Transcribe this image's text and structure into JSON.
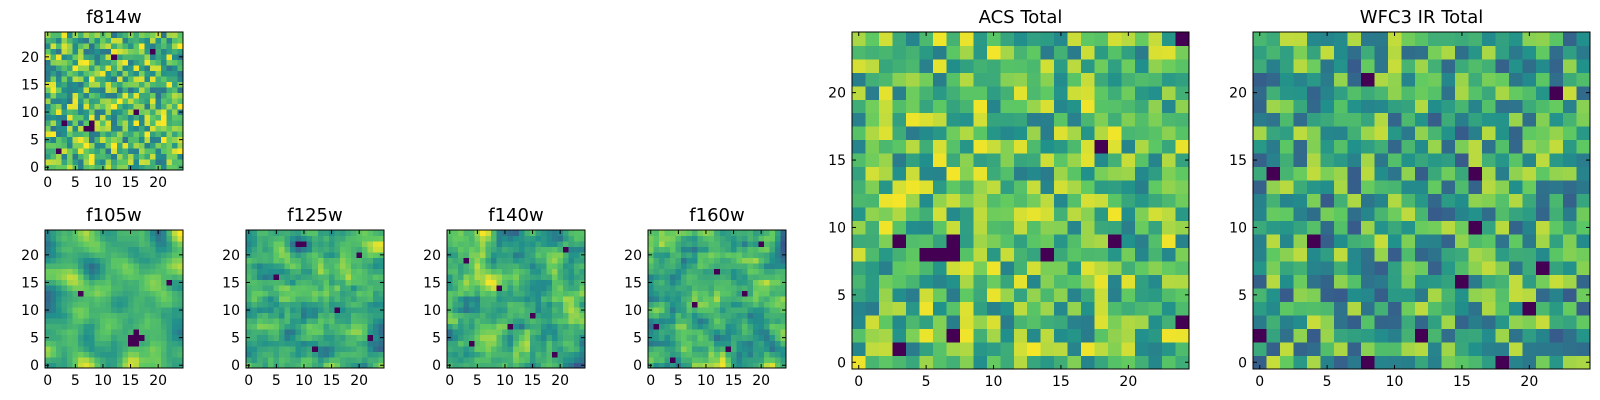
{
  "colormap": {
    "name": "viridis",
    "stops": [
      "#440154",
      "#3b528b",
      "#21918c",
      "#5ec962",
      "#fde725"
    ]
  },
  "chart_data": [
    {
      "id": "f814w",
      "type": "heatmap",
      "title": "f814w",
      "grid": 25,
      "xlim": [
        -0.5,
        24.5
      ],
      "ylim": [
        -0.5,
        24.5
      ],
      "xticks": [
        0,
        5,
        10,
        15,
        20
      ],
      "yticks": [
        0,
        5,
        10,
        15,
        20
      ],
      "value_range": [
        0,
        1
      ],
      "pattern": "noise-fine",
      "seed": 11,
      "smooth": 0,
      "bias": 0.7,
      "contrast": 0.55,
      "dark_cells": [
        [
          7,
          7
        ],
        [
          8,
          7
        ],
        [
          8,
          8
        ],
        [
          3,
          8
        ],
        [
          2,
          3
        ],
        [
          12,
          20
        ],
        [
          19,
          21
        ],
        [
          16,
          10
        ]
      ]
    },
    {
      "id": "f105w",
      "type": "heatmap",
      "title": "f105w",
      "grid": 25,
      "xlim": [
        -0.5,
        24.5
      ],
      "ylim": [
        -0.5,
        24.5
      ],
      "xticks": [
        0,
        5,
        10,
        15,
        20
      ],
      "yticks": [
        0,
        5,
        10,
        15,
        20
      ],
      "value_range": [
        0,
        1
      ],
      "pattern": "noise-smooth",
      "seed": 23,
      "smooth": 2,
      "bias": 0.68,
      "contrast": 0.6,
      "dark_cells": [
        [
          15,
          4
        ],
        [
          16,
          4
        ],
        [
          15,
          5
        ],
        [
          16,
          5
        ],
        [
          17,
          5
        ],
        [
          16,
          6
        ],
        [
          6,
          13
        ],
        [
          22,
          15
        ]
      ]
    },
    {
      "id": "f125w",
      "type": "heatmap",
      "title": "f125w",
      "grid": 25,
      "xlim": [
        -0.5,
        24.5
      ],
      "ylim": [
        -0.5,
        24.5
      ],
      "xticks": [
        0,
        5,
        10,
        15,
        20
      ],
      "yticks": [
        0,
        5,
        10,
        15,
        20
      ],
      "value_range": [
        0,
        1
      ],
      "pattern": "noise-smooth",
      "seed": 37,
      "smooth": 1,
      "bias": 0.62,
      "contrast": 0.6,
      "dark_cells": [
        [
          9,
          22
        ],
        [
          10,
          22
        ],
        [
          20,
          20
        ],
        [
          5,
          16
        ],
        [
          16,
          10
        ],
        [
          12,
          3
        ],
        [
          22,
          5
        ]
      ]
    },
    {
      "id": "f140w",
      "type": "heatmap",
      "title": "f140w",
      "grid": 25,
      "xlim": [
        -0.5,
        24.5
      ],
      "ylim": [
        -0.5,
        24.5
      ],
      "xticks": [
        0,
        5,
        10,
        15,
        20
      ],
      "yticks": [
        0,
        5,
        10,
        15,
        20
      ],
      "value_range": [
        0,
        1
      ],
      "pattern": "noise-smooth",
      "seed": 41,
      "smooth": 1,
      "bias": 0.63,
      "contrast": 0.62,
      "dark_cells": [
        [
          3,
          19
        ],
        [
          9,
          14
        ],
        [
          21,
          21
        ],
        [
          15,
          9
        ],
        [
          4,
          4
        ],
        [
          19,
          2
        ],
        [
          11,
          7
        ]
      ]
    },
    {
      "id": "f160w",
      "type": "heatmap",
      "title": "f160w",
      "grid": 25,
      "xlim": [
        -0.5,
        24.5
      ],
      "ylim": [
        -0.5,
        24.5
      ],
      "xticks": [
        0,
        5,
        10,
        15,
        20
      ],
      "yticks": [
        0,
        5,
        10,
        15,
        20
      ],
      "value_range": [
        0,
        1
      ],
      "pattern": "noise-smooth",
      "seed": 53,
      "smooth": 1,
      "bias": 0.62,
      "contrast": 0.62,
      "dark_cells": [
        [
          1,
          7
        ],
        [
          20,
          22
        ],
        [
          12,
          17
        ],
        [
          8,
          11
        ],
        [
          17,
          13
        ],
        [
          14,
          3
        ],
        [
          4,
          1
        ]
      ]
    },
    {
      "id": "acs-total",
      "type": "heatmap",
      "title": "ACS Total",
      "grid": 25,
      "xlim": [
        -0.5,
        24.5
      ],
      "ylim": [
        -0.5,
        24.5
      ],
      "xticks": [
        0,
        5,
        10,
        15,
        20
      ],
      "yticks": [
        0,
        5,
        10,
        15,
        20
      ],
      "value_range": [
        0,
        1
      ],
      "pattern": "noise-coarse",
      "seed": 67,
      "smooth": 0,
      "bias": 0.7,
      "contrast": 0.5,
      "dark_cells": [
        [
          7,
          9
        ],
        [
          7,
          8
        ],
        [
          6,
          8
        ],
        [
          5,
          8
        ],
        [
          3,
          9
        ],
        [
          24,
          24
        ],
        [
          18,
          16
        ],
        [
          19,
          9
        ],
        [
          24,
          3
        ],
        [
          3,
          1
        ],
        [
          7,
          2
        ],
        [
          14,
          8
        ]
      ]
    },
    {
      "id": "wfc3-ir-total",
      "type": "heatmap",
      "title": "WFC3 IR Total",
      "grid": 25,
      "xlim": [
        -0.5,
        24.5
      ],
      "ylim": [
        -0.5,
        24.5
      ],
      "xticks": [
        0,
        5,
        10,
        15,
        20
      ],
      "yticks": [
        0,
        5,
        10,
        15,
        20
      ],
      "value_range": [
        0,
        1
      ],
      "pattern": "noise-coarse",
      "seed": 79,
      "smooth": 0,
      "bias": 0.6,
      "contrast": 0.55,
      "dark_cells": [
        [
          8,
          21
        ],
        [
          22,
          20
        ],
        [
          1,
          14
        ],
        [
          16,
          14
        ],
        [
          16,
          10
        ],
        [
          4,
          9
        ],
        [
          21,
          7
        ],
        [
          15,
          6
        ],
        [
          0,
          2
        ],
        [
          12,
          2
        ],
        [
          8,
          0
        ],
        [
          18,
          0
        ],
        [
          20,
          4
        ]
      ]
    }
  ]
}
